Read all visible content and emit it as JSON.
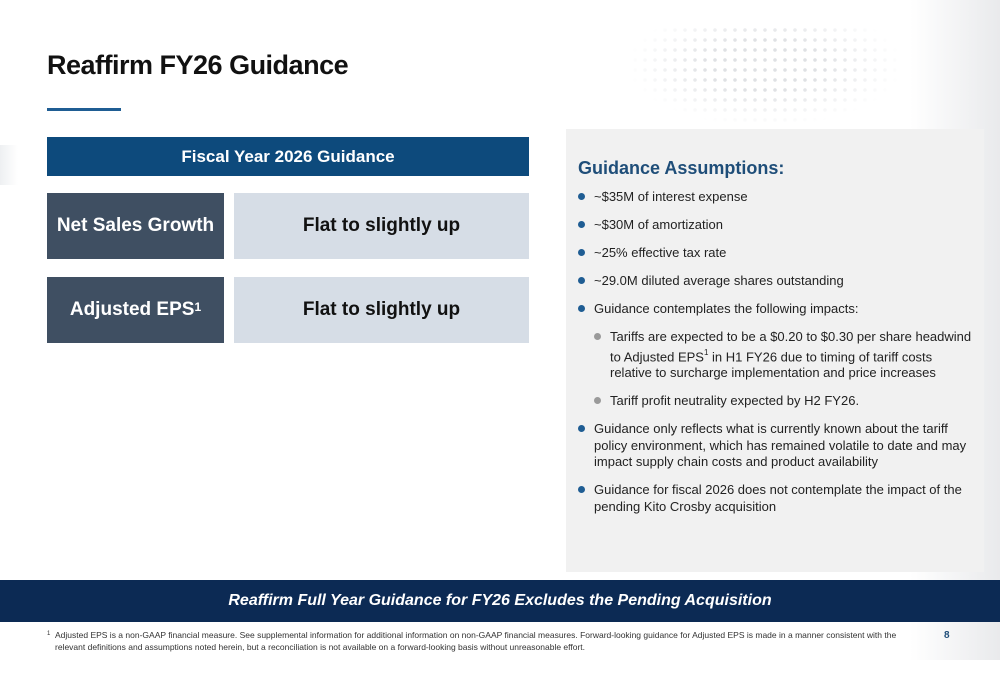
{
  "page": {
    "title": "Reaffirm FY26 Guidance",
    "page_number": "8"
  },
  "guidance_table": {
    "header": "Fiscal Year 2026 Guidance",
    "rows": [
      {
        "label": "Net Sales Growth",
        "superscript": "",
        "value": "Flat to slightly up"
      },
      {
        "label": "Adjusted EPS",
        "superscript": "1",
        "value": "Flat to slightly up"
      }
    ]
  },
  "assumptions": {
    "title": "Guidance Assumptions:",
    "items": [
      {
        "text": "~$35M of interest expense"
      },
      {
        "text": "~$30M of amortization"
      },
      {
        "text": "~25% effective tax rate"
      },
      {
        "text": "~29.0M diluted average shares outstanding"
      },
      {
        "text": "Guidance contemplates the following impacts:"
      },
      {
        "text_before": "Tariffs are expected to be a $0.20 to $0.30 per share headwind to Adjusted EPS",
        "superscript": "1",
        "text_after": " in H1 FY26 due to timing of tariff costs relative to surcharge implementation and price increases"
      },
      {
        "text": "Tariff profit neutrality expected by H2 FY26."
      },
      {
        "text": "Guidance only reflects what is currently known about the tariff policy environment, which has remained volatile to date and may impact supply chain costs and product availability"
      },
      {
        "text": "Guidance for fiscal 2026 does not contemplate the impact of the pending Kito Crosby acquisition"
      }
    ]
  },
  "banner": {
    "text": "Reaffirm Full Year Guidance for FY26 Excludes the Pending Acquisition"
  },
  "footnote": {
    "mark": "1",
    "text": "Adjusted EPS is a non-GAAP financial measure. See supplemental information for additional information on non-GAAP financial measures. Forward-looking guidance for Adjusted EPS is made in a manner consistent with the relevant definitions and assumptions noted herein, but a reconciliation is not available on a forward-looking basis without unreasonable effort."
  },
  "colors": {
    "primary_blue": "#0d4a7c",
    "banner_navy": "#0c2a54",
    "label_slate": "#3f4f62",
    "value_gray_blue": "#d6dde6",
    "panel_gray": "#f1f1f1"
  }
}
